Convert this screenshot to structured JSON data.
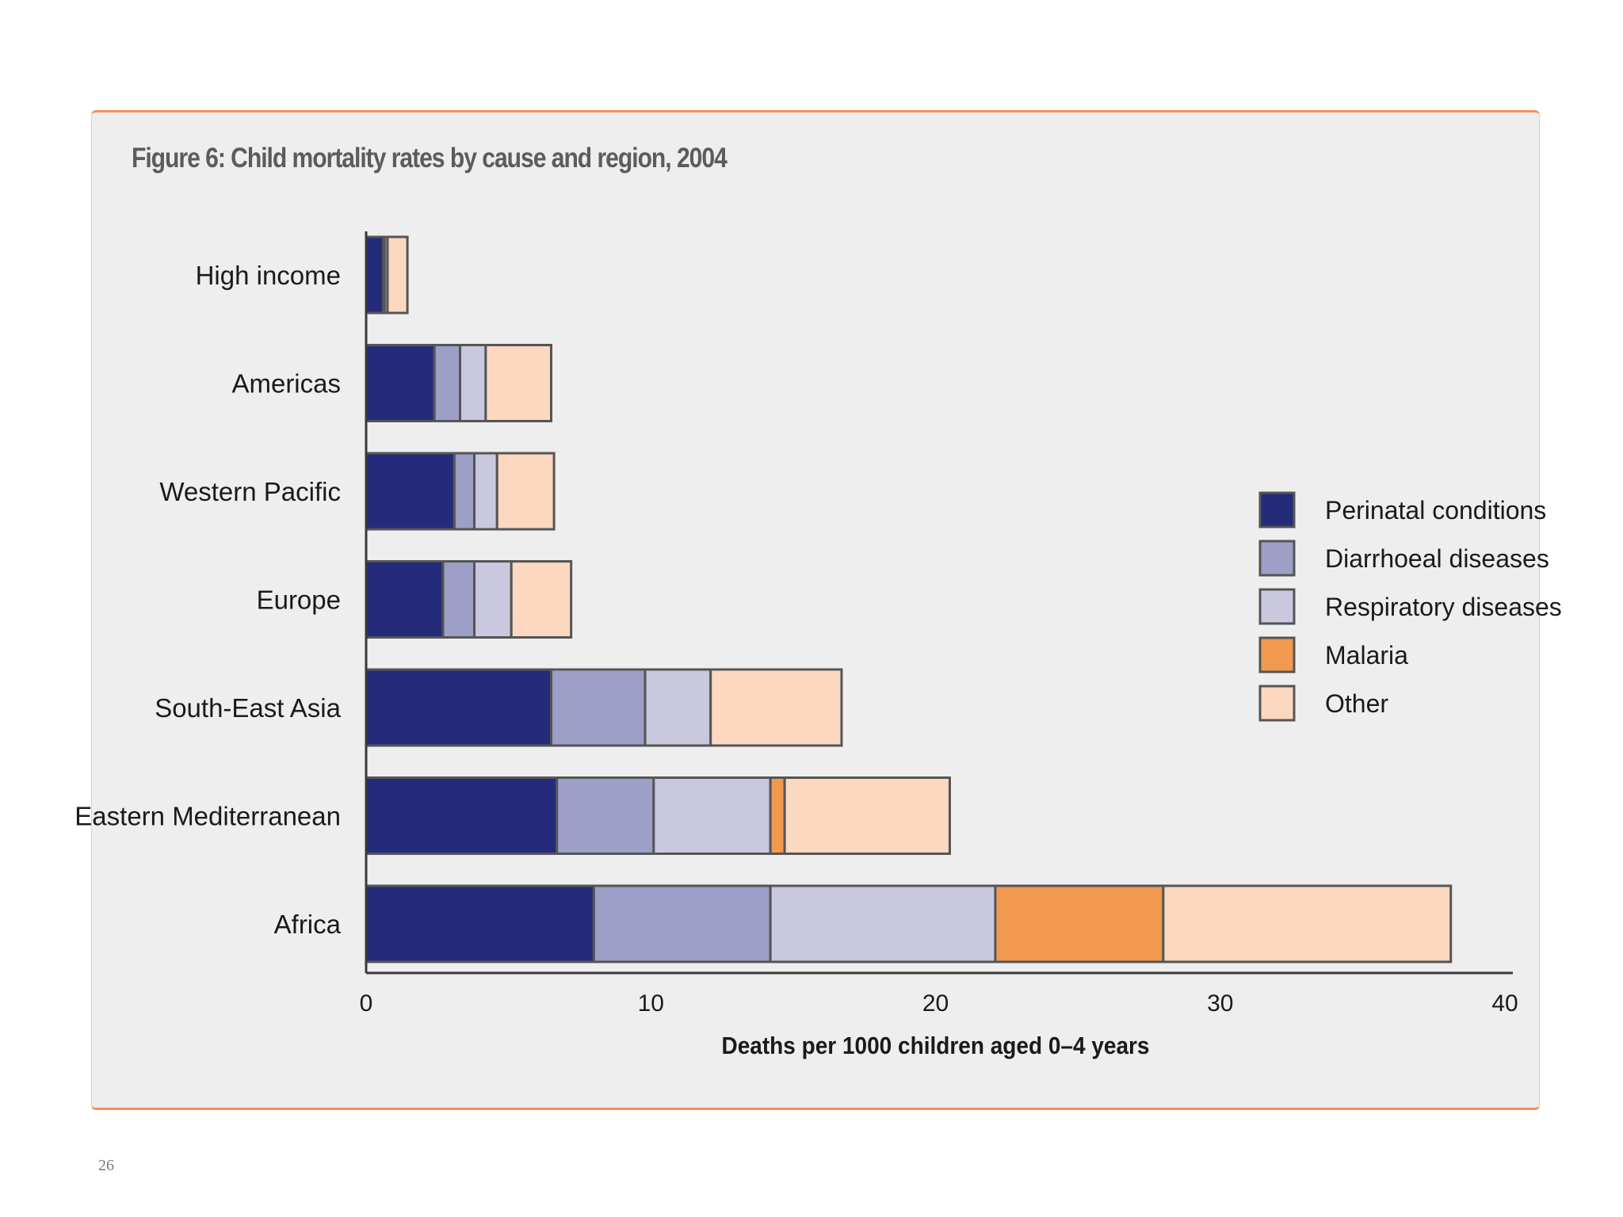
{
  "page_number": "26",
  "chart_data": {
    "type": "bar",
    "orientation": "horizontal",
    "stacked": true,
    "title": "Figure 6: Child mortality rates by cause and region, 2004",
    "xlabel": "Deaths per 1000 children aged 0–4 years",
    "ylabel": "",
    "xlim": [
      0,
      40
    ],
    "xticks": [
      0,
      10,
      20,
      30,
      40
    ],
    "grid": false,
    "legend_position": "right",
    "categories": [
      "High income",
      "Americas",
      "Western Pacific",
      "Europe",
      "South-East Asia",
      "Eastern Mediterranean",
      "Africa"
    ],
    "series": [
      {
        "name": "Perinatal conditions",
        "color": "#252b7b",
        "values": [
          0.6,
          2.4,
          3.1,
          2.7,
          6.5,
          6.7,
          8.0
        ]
      },
      {
        "name": "Diarrhoeal diseases",
        "color": "#9d9fc7",
        "values": [
          0.05,
          0.9,
          0.7,
          1.1,
          3.3,
          3.4,
          6.2
        ]
      },
      {
        "name": "Respiratory diseases",
        "color": "#c9c8df",
        "values": [
          0.1,
          0.9,
          0.8,
          1.3,
          2.3,
          4.1,
          7.9
        ]
      },
      {
        "name": "Malaria",
        "color": "#f0994f",
        "values": [
          0,
          0,
          0,
          0,
          0,
          0.5,
          5.9
        ]
      },
      {
        "name": "Other",
        "color": "#fbd8bf",
        "values": [
          0.7,
          2.3,
          2.0,
          2.1,
          4.6,
          5.8,
          10.1
        ]
      }
    ]
  }
}
